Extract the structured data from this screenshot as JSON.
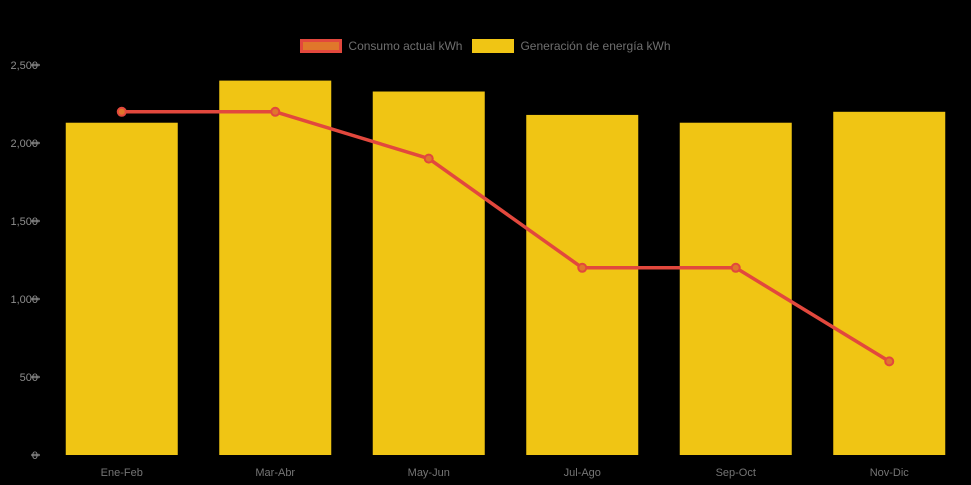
{
  "legend": {
    "position": "top-center",
    "items": [
      {
        "label": "Consumo actual kWh"
      },
      {
        "label": "Generación de energía kWh"
      }
    ]
  },
  "chart_data": {
    "type": "bar",
    "combo": "bars-with-line-overlay",
    "title": "",
    "xlabel": "",
    "ylabel": "",
    "categories": [
      "Ene-Feb",
      "Mar-Abr",
      "May-Jun",
      "Jul-Ago",
      "Sep-Oct",
      "Nov-Dic"
    ],
    "series": [
      {
        "name": "Consumo actual kWh",
        "type": "line",
        "color": "#e2483d",
        "marker_fill": "#e0772b",
        "values": [
          2200,
          2200,
          1900,
          1200,
          1200,
          600
        ]
      },
      {
        "name": "Generación de energía kWh",
        "type": "bar",
        "color": "#f0c514",
        "values": [
          2130,
          2400,
          2330,
          2180,
          2130,
          2200
        ]
      }
    ],
    "ylim": [
      0,
      2500
    ],
    "y_tick_values": [
      2500,
      2000,
      1500,
      1000,
      500,
      0
    ],
    "y_tick_labels": [
      "2,500",
      "2,000",
      "1,500",
      "1,000",
      "500",
      "0"
    ],
    "grid": false,
    "legend_position": "top-center",
    "background": "#000000"
  },
  "colors": {
    "background": "#000000",
    "bar_yellow": "#f0c514",
    "line_red": "#e2483d",
    "marker_orange": "#e0772b",
    "legend_text": "#6f6f6f",
    "y_axis_text": "#8c8c8c",
    "x_axis_text": "#757575",
    "tick_mark": "#666666"
  }
}
